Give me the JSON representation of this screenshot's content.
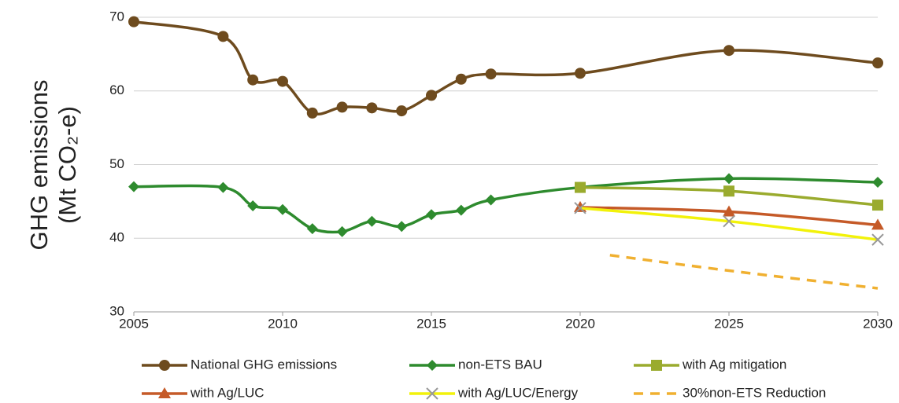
{
  "chart_data": {
    "type": "line",
    "ylabel": [
      "GHG emissions",
      "(Mt CO₂-e)"
    ],
    "xlim": [
      2005,
      2030
    ],
    "xticks": [
      2005,
      2010,
      2015,
      2020,
      2025,
      2030
    ],
    "ylim": [
      30,
      70
    ],
    "yticks": [
      30,
      40,
      50,
      60,
      70
    ],
    "grid": true,
    "smooth": true,
    "series": [
      {
        "name": "National GHG emissions",
        "color": "#6e4b1e",
        "marker": "circle",
        "x": [
          2005,
          2008,
          2009,
          2010,
          2011,
          2012,
          2013,
          2014,
          2015,
          2016,
          2017,
          2020,
          2025,
          2030
        ],
        "values": [
          69.4,
          67.4,
          61.5,
          61.3,
          57.0,
          57.8,
          57.7,
          57.3,
          59.4,
          61.6,
          62.3,
          62.4,
          65.5,
          63.8
        ]
      },
      {
        "name": "non-ETS BAU",
        "color": "#2e8b2e",
        "marker": "diamond",
        "x": [
          2005,
          2008,
          2009,
          2010,
          2011,
          2012,
          2013,
          2014,
          2015,
          2016,
          2017,
          2020,
          2025,
          2030
        ],
        "values": [
          47.0,
          46.9,
          44.4,
          43.9,
          41.3,
          40.9,
          42.3,
          41.6,
          43.2,
          43.8,
          45.2,
          46.9,
          48.1,
          47.6
        ]
      },
      {
        "name": "with Ag mitigation",
        "color": "#9aab2e",
        "marker": "square",
        "x": [
          2020,
          2025,
          2030
        ],
        "values": [
          46.9,
          46.4,
          44.5
        ]
      },
      {
        "name": "with Ag/LUC",
        "color": "#c55a28",
        "marker": "triangle",
        "x": [
          2020,
          2025,
          2030
        ],
        "values": [
          44.2,
          43.6,
          41.8
        ]
      },
      {
        "name": "with Ag/LUC/Energy",
        "color": "#f2f20a",
        "marker": "x",
        "x": [
          2020,
          2025,
          2030
        ],
        "values": [
          44.1,
          42.3,
          39.8
        ]
      },
      {
        "name": "30%non-ETS Reduction",
        "color": "#f0b030",
        "marker": "none",
        "line_style": "dashed",
        "x": [
          2021,
          2025,
          2030
        ],
        "values": [
          37.7,
          35.6,
          33.2
        ]
      }
    ]
  }
}
